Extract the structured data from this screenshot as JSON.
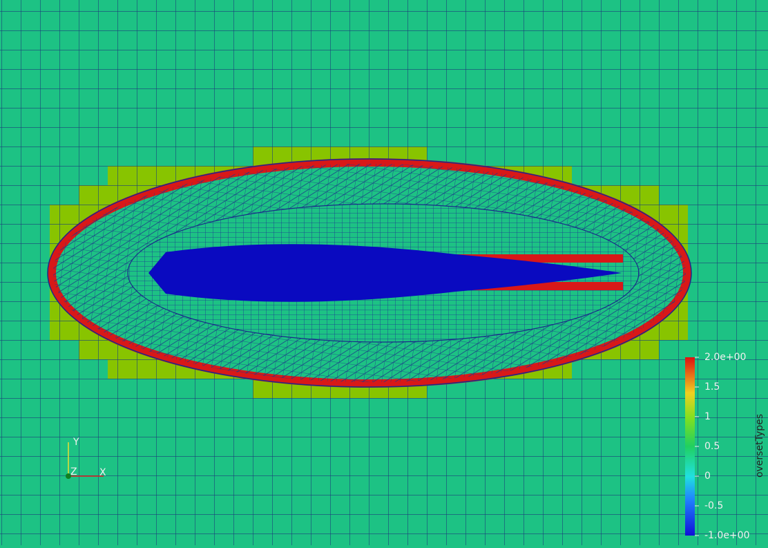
{
  "colorbar": {
    "title": "oversetTypes",
    "ticks": [
      {
        "value": 2,
        "label": "2.0e+00"
      },
      1.5,
      1,
      0.5,
      0,
      -0.5,
      {
        "value": -1,
        "label": "-1.0e+00"
      }
    ]
  },
  "axes": {
    "x": "X",
    "y": "Y",
    "z": "Z"
  }
}
